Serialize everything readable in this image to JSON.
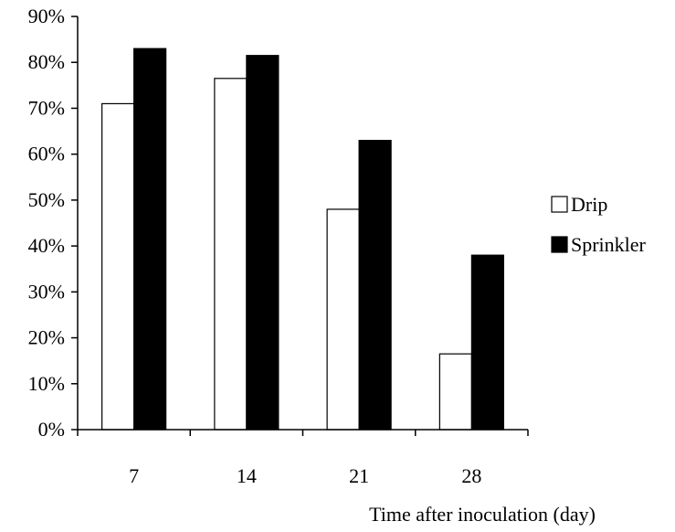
{
  "chart_data": {
    "type": "bar",
    "title": "",
    "xlabel": "Time after inoculation (day)",
    "ylabel": "",
    "categories": [
      "7",
      "14",
      "21",
      "28"
    ],
    "series": [
      {
        "name": "Drip",
        "values": [
          0.71,
          0.765,
          0.48,
          0.165
        ],
        "color": "#ffffff"
      },
      {
        "name": "Sprinkler",
        "values": [
          0.83,
          0.815,
          0.63,
          0.38
        ],
        "color": "#000000"
      }
    ],
    "ylim": [
      0,
      0.9
    ],
    "yticks": [
      0,
      0.1,
      0.2,
      0.3,
      0.4,
      0.5,
      0.6,
      0.7,
      0.8,
      0.9
    ],
    "ytick_labels": [
      "0%",
      "10%",
      "20%",
      "30%",
      "40%",
      "50%",
      "60%",
      "70%",
      "80%",
      "90%"
    ],
    "grid": false,
    "legend_position": "right"
  }
}
